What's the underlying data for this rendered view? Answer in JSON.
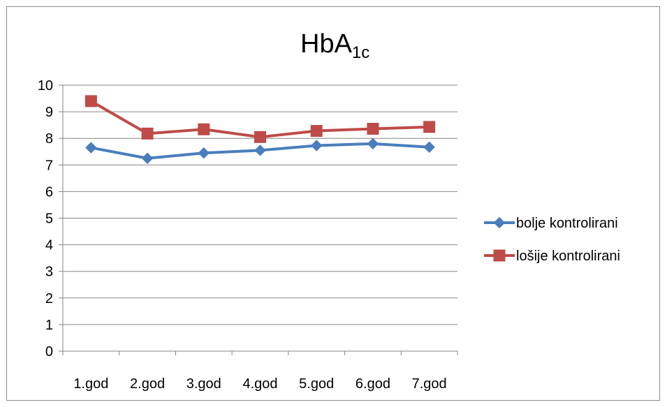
{
  "chart_data": {
    "type": "line",
    "title": {
      "main": "HbA",
      "subscript": "1c"
    },
    "categories": [
      "1.god",
      "2.god",
      "3.god",
      "4.god",
      "5.god",
      "6.god",
      "7.god"
    ],
    "ylim": [
      0,
      10
    ],
    "yticks": [
      "0",
      "1",
      "2",
      "3",
      "4",
      "5",
      "6",
      "7",
      "8",
      "9",
      "10"
    ],
    "grid": true,
    "legend_position": "right",
    "series": [
      {
        "name": "bolje kontrolirani",
        "values": [
          7.65,
          7.25,
          7.45,
          7.55,
          7.73,
          7.8,
          7.67
        ],
        "color": "#4a7ebb",
        "marker": "diamond"
      },
      {
        "name": "lošije kontrolirani",
        "values": [
          9.4,
          8.18,
          8.34,
          8.05,
          8.28,
          8.36,
          8.43
        ],
        "color": "#be4b48",
        "marker": "square"
      }
    ]
  }
}
